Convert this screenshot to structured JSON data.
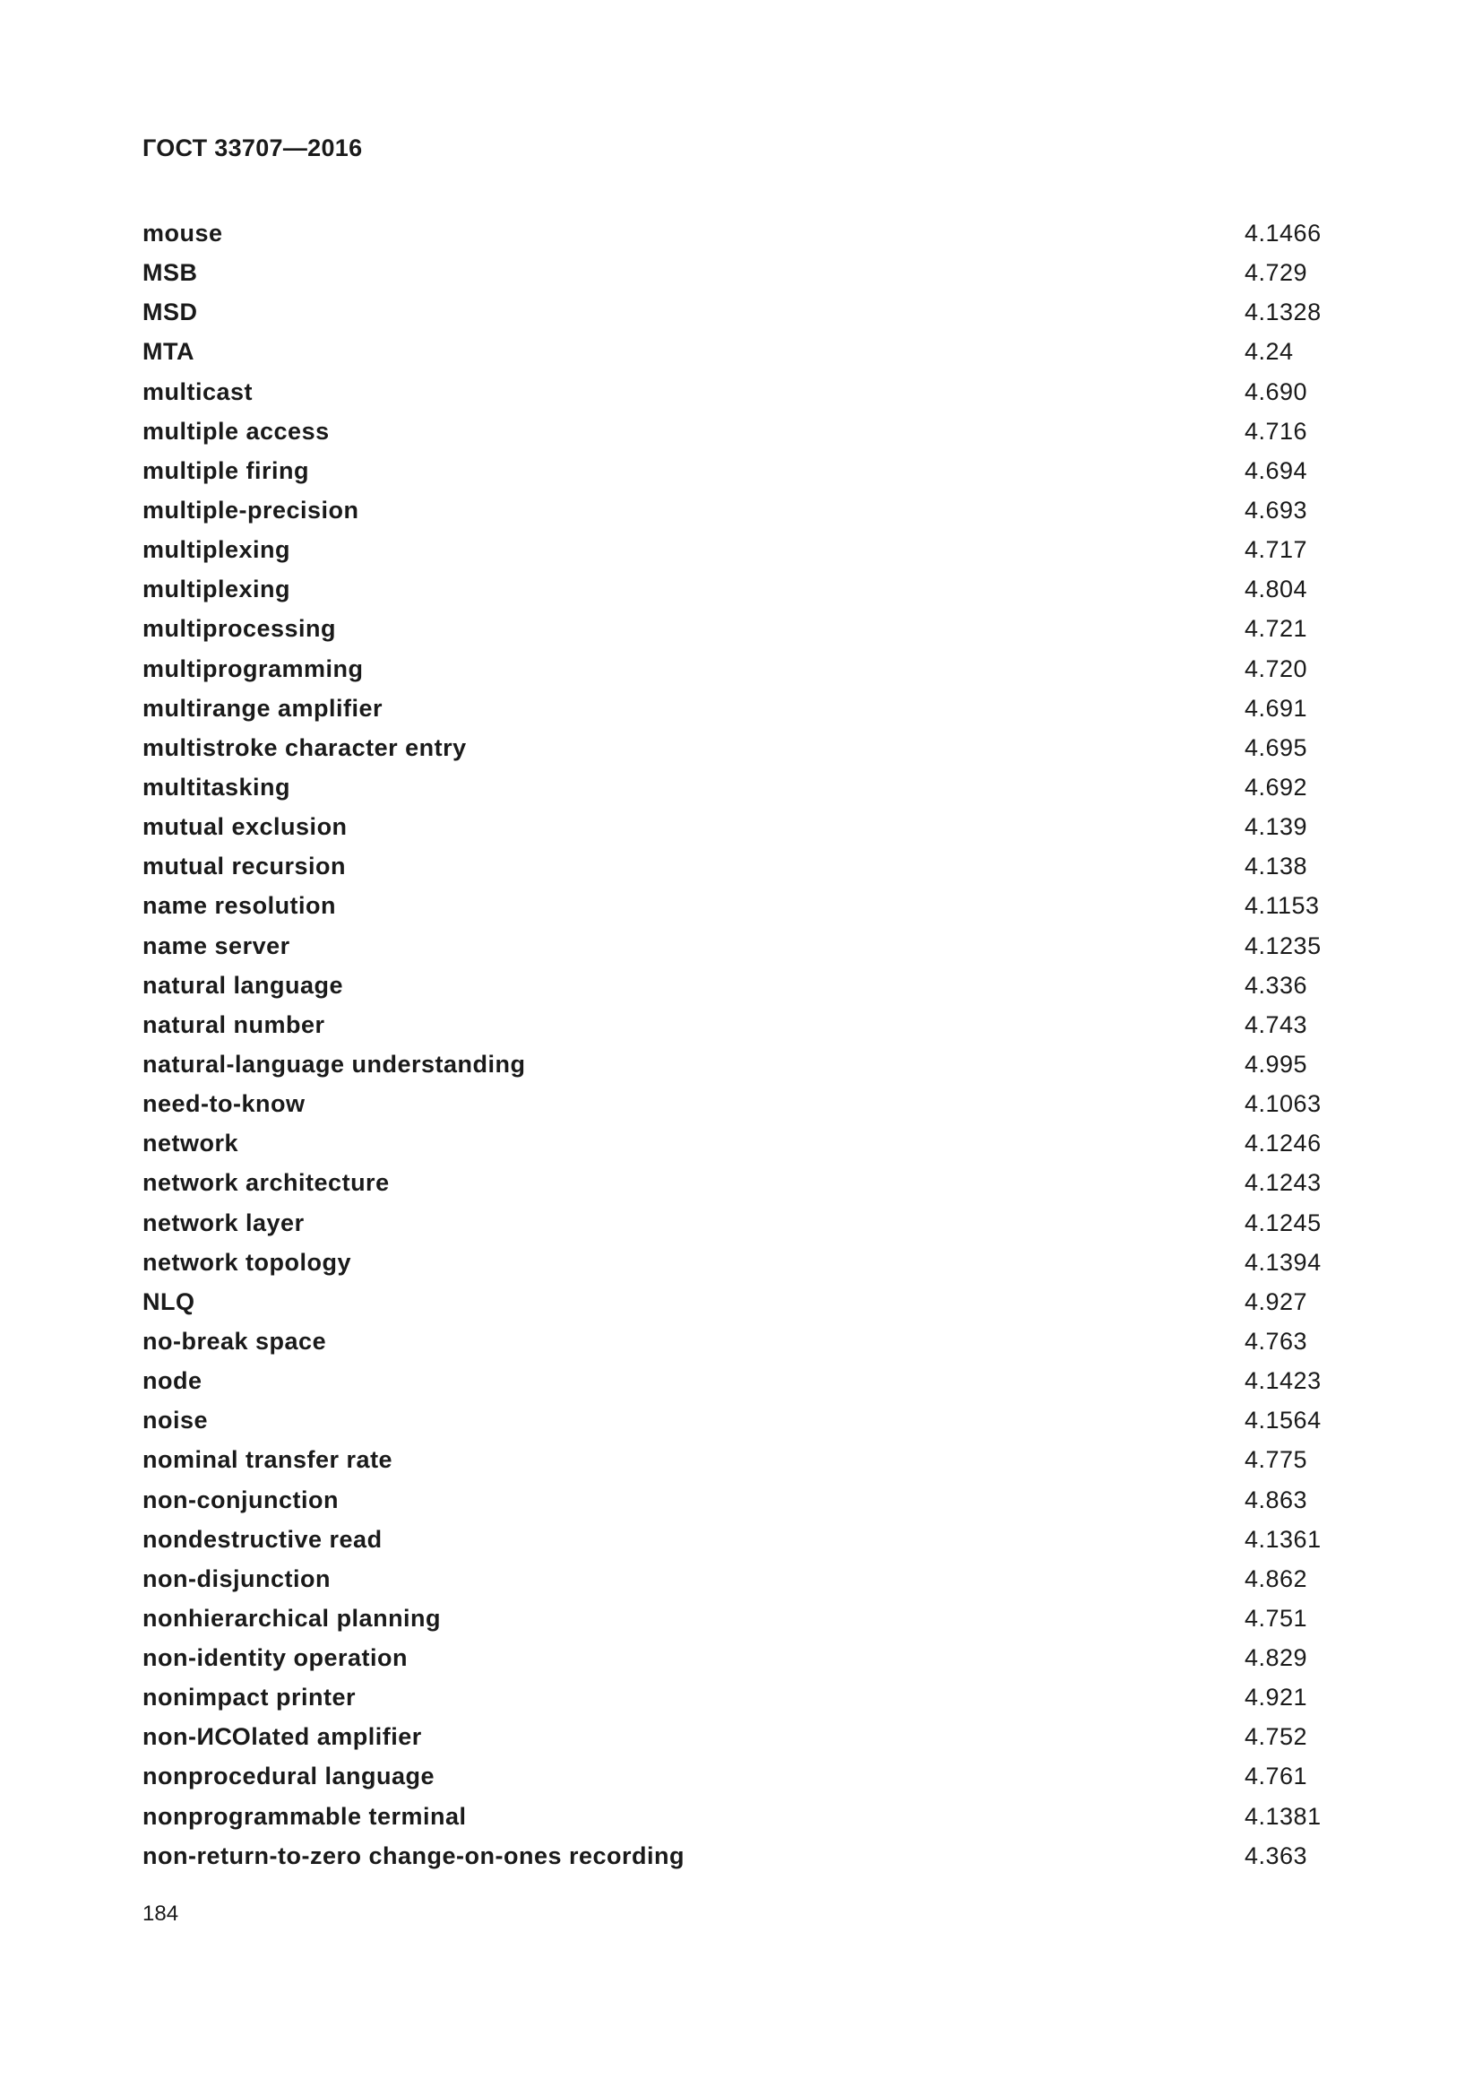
{
  "header": {
    "title": "ГОСТ 33707—2016"
  },
  "entries": [
    {
      "term": "mouse",
      "ref": "4.1466"
    },
    {
      "term": "MSB",
      "ref": "4.729"
    },
    {
      "term": "MSD",
      "ref": "4.1328"
    },
    {
      "term": "MTA",
      "ref": "4.24"
    },
    {
      "term": "multicast",
      "ref": "4.690"
    },
    {
      "term": "multiple access",
      "ref": "4.716"
    },
    {
      "term": "multiple firing",
      "ref": "4.694"
    },
    {
      "term": "multiple-precision",
      "ref": "4.693"
    },
    {
      "term": "multiplexing",
      "ref": "4.717"
    },
    {
      "term": "multiplexing",
      "ref": "4.804"
    },
    {
      "term": "multiprocessing",
      "ref": "4.721"
    },
    {
      "term": "multiprogramming",
      "ref": "4.720"
    },
    {
      "term": "multirange amplifier",
      "ref": "4.691"
    },
    {
      "term": "multistroke character entry",
      "ref": "4.695"
    },
    {
      "term": "multitasking",
      "ref": "4.692"
    },
    {
      "term": "mutual exclusion",
      "ref": "4.139"
    },
    {
      "term": "mutual recursion",
      "ref": "4.138"
    },
    {
      "term": "name resolution",
      "ref": "4.1153"
    },
    {
      "term": "name server",
      "ref": "4.1235"
    },
    {
      "term": "natural language",
      "ref": "4.336"
    },
    {
      "term": "natural number",
      "ref": "4.743"
    },
    {
      "term": "natural-language understanding",
      "ref": "4.995"
    },
    {
      "term": "need-to-know",
      "ref": "4.1063"
    },
    {
      "term": "network",
      "ref": "4.1246"
    },
    {
      "term": "network architecture",
      "ref": "4.1243"
    },
    {
      "term": "network layer",
      "ref": "4.1245"
    },
    {
      "term": "network topology",
      "ref": "4.1394"
    },
    {
      "term": "NLQ",
      "ref": "4.927"
    },
    {
      "term": "no-break space",
      "ref": "4.763"
    },
    {
      "term": "node",
      "ref": "4.1423"
    },
    {
      "term": "noise",
      "ref": "4.1564"
    },
    {
      "term": "nominal transfer rate",
      "ref": "4.775"
    },
    {
      "term": "non-conjunction",
      "ref": "4.863"
    },
    {
      "term": "nondestructive read",
      "ref": "4.1361"
    },
    {
      "term": "non-disjunction",
      "ref": "4.862"
    },
    {
      "term": "nonhierarchical planning",
      "ref": "4.751"
    },
    {
      "term": "non-identity operation",
      "ref": "4.829"
    },
    {
      "term": "nonimpact printer",
      "ref": "4.921"
    },
    {
      "term": "non-ИСОlated amplifier",
      "ref": "4.752"
    },
    {
      "term": "nonprocedural language",
      "ref": "4.761"
    },
    {
      "term": "nonprogrammable terminal",
      "ref": "4.1381"
    },
    {
      "term": "non-return-to-zero change-on-ones recording",
      "ref": "4.363"
    }
  ],
  "footer": {
    "page_number": "184"
  }
}
